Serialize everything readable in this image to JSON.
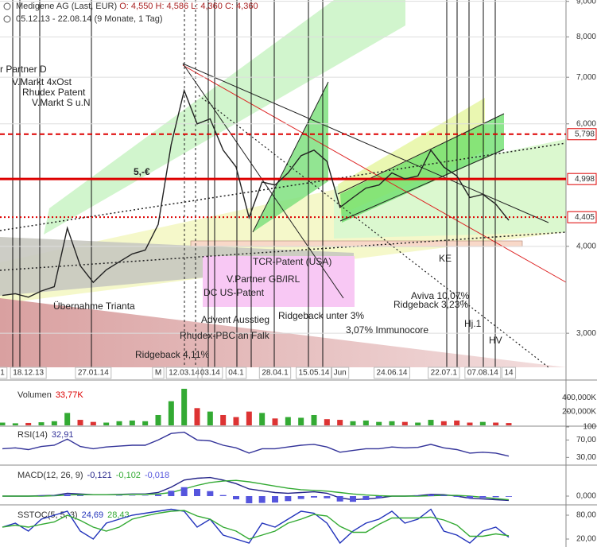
{
  "header": {
    "title": "Medigene AG (Last, EUR)",
    "ohlc": [
      "O: 4,550",
      "H: 4,586",
      "L: 4,360",
      "C: 4,360"
    ],
    "range": "05.12.13 - 22.08.14 (9 Monate, 1 Tag)"
  },
  "chart_data": [
    {
      "type": "line",
      "categories": [
        "1",
        null,
        "18.12.13",
        null,
        null,
        null,
        null,
        "27.01.14",
        null,
        null,
        null,
        null,
        "M",
        null,
        "12.03.14",
        null,
        "03.14",
        null,
        "04.1",
        null,
        null,
        "28.04.1",
        null,
        null,
        "15.05.14",
        null,
        "Jun",
        null,
        null,
        null,
        "24.06.14",
        null,
        null,
        null,
        "22.07.1",
        null,
        null,
        "07.08.14",
        null,
        "14"
      ],
      "series": [
        {
          "color": "#222222",
          "values": [
            3.4,
            3.42,
            3.38,
            3.45,
            3.5,
            4.25,
            3.75,
            3.55,
            3.7,
            3.8,
            3.9,
            3.95,
            4.3,
            5.6,
            6.7,
            6.0,
            6.1,
            5.5,
            5.2,
            4.4,
            4.95,
            4.9,
            5.1,
            5.4,
            5.5,
            5.3,
            4.55,
            4.7,
            4.85,
            4.9,
            5.1,
            5.0,
            5.05,
            5.5,
            5.2,
            5.05,
            4.7,
            4.75,
            4.6,
            4.36
          ]
        }
      ],
      "ylim": [
        2.68,
        9.04
      ],
      "log_scale": true,
      "grid": true,
      "yticks": [
        {
          "value": 9,
          "label": "9,000"
        },
        {
          "value": 8,
          "label": "8,000"
        },
        {
          "value": 7,
          "label": "7,000"
        },
        {
          "value": 6,
          "label": "6,000"
        },
        {
          "value": 4,
          "label": "4,000"
        },
        {
          "value": 3,
          "label": "3,000"
        }
      ],
      "levels": [
        {
          "value": 5.798,
          "label": "5,798",
          "color": "#dd0000",
          "style": "dashed"
        },
        {
          "value": 4.998,
          "label": "4,998",
          "color": "#dd0000",
          "style": "solid"
        },
        {
          "value": 4.405,
          "label": "4,405",
          "color": "#dd0000",
          "style": "dotted"
        }
      ],
      "annotations": [
        "r Partner D",
        "V.Markt 4xOst",
        "Rhudex Patent",
        "V.Markt S u.N",
        "5,-€",
        "TCR-Patent (USA)",
        "V.Partner GB/IRL",
        "DC US-Patent",
        "Übernahme Trianta",
        "Advent Ausstieg",
        "Ridgeback unter 3%",
        "Rhudex-PBC an Falk",
        "3,07% Immunocore",
        "Ridgeback 4,11%",
        "Aviva 10,07%",
        "Ridgeback 3,23%",
        "KE",
        "Hj.1",
        "HV"
      ]
    },
    {
      "type": "bar",
      "title": "Volumen",
      "series": [
        {
          "values": [
            40,
            30,
            35,
            45,
            60,
            180,
            80,
            50,
            40,
            60,
            70,
            60,
            150,
            350,
            530,
            250,
            200,
            150,
            120,
            200,
            180,
            100,
            120,
            110,
            150,
            90,
            80,
            60,
            70,
            50,
            60,
            50,
            40,
            80,
            60,
            70,
            40,
            50,
            40,
            33.77
          ],
          "value_label": "33,77K",
          "color": "#dd0000",
          "up_color": "#33aa33",
          "down_color": "#dd3333"
        }
      ],
      "ylim": [
        0,
        553
      ],
      "yticks": [
        {
          "value": 400,
          "label": "400,000K"
        },
        {
          "value": 200,
          "label": "200,000K"
        }
      ]
    },
    {
      "type": "line",
      "title": "RSI(14)",
      "series": [
        {
          "color": "#333399",
          "values": [
            50,
            52,
            48,
            55,
            58,
            72,
            55,
            50,
            54,
            56,
            58,
            58,
            70,
            85,
            88,
            70,
            68,
            58,
            52,
            40,
            50,
            50,
            54,
            58,
            60,
            54,
            42,
            46,
            50,
            50,
            54,
            52,
            53,
            60,
            52,
            48,
            40,
            42,
            40,
            32.91
          ],
          "value_label": "32,91"
        }
      ],
      "ylim": [
        16,
        100
      ],
      "yticks": [
        100,
        {
          "value": 70,
          "label": "70,00"
        },
        {
          "value": 30,
          "label": "30,00"
        }
      ]
    },
    {
      "type": "line",
      "title": "MACD(12, 26, 9)",
      "series": [
        {
          "color": "#222288",
          "values": [
            0,
            0,
            0,
            0.01,
            0.02,
            0.08,
            0.06,
            0.04,
            0.04,
            0.05,
            0.06,
            0.06,
            0.1,
            0.25,
            0.45,
            0.5,
            0.52,
            0.45,
            0.35,
            0.2,
            0.15,
            0.1,
            0.08,
            0.1,
            0.12,
            0.08,
            -0.05,
            -0.1,
            -0.08,
            -0.05,
            0,
            0,
            0.01,
            0.05,
            0.04,
            0,
            -0.06,
            -0.08,
            -0.1,
            -0.121
          ],
          "value_label": "-0,121"
        },
        {
          "color": "#33aa33",
          "values": [
            0,
            0,
            0,
            0,
            0.01,
            0.03,
            0.04,
            0.04,
            0.04,
            0.04,
            0.05,
            0.05,
            0.06,
            0.1,
            0.2,
            0.3,
            0.38,
            0.42,
            0.44,
            0.4,
            0.34,
            0.28,
            0.22,
            0.18,
            0.16,
            0.14,
            0.1,
            0.06,
            0.03,
            0.01,
            0,
            0,
            0,
            0.01,
            0.02,
            0.02,
            0,
            -0.03,
            -0.07,
            -0.102
          ],
          "value_label": "-0,102"
        },
        {
          "color": "#5555dd",
          "kind": "bar",
          "values": [
            0,
            0,
            0,
            0.01,
            0.01,
            0.05,
            0.02,
            0,
            0,
            0.01,
            0.01,
            0.01,
            0.04,
            0.15,
            0.25,
            0.2,
            0.14,
            0.03,
            -0.09,
            -0.2,
            -0.19,
            -0.18,
            -0.14,
            -0.08,
            -0.04,
            -0.06,
            -0.15,
            -0.16,
            -0.11,
            -0.06,
            0,
            0,
            0.01,
            0.04,
            0.02,
            -0.02,
            -0.06,
            -0.05,
            -0.03,
            -0.018
          ],
          "value_label": "-0,018"
        }
      ],
      "ylim": [
        -0.2,
        0.8
      ],
      "yticks": [
        {
          "value": 0,
          "label": "0,000"
        }
      ]
    },
    {
      "type": "line",
      "title": "SSTOC(5, 5, 3)",
      "series": [
        {
          "color": "#2233bb",
          "values": [
            50,
            60,
            40,
            70,
            80,
            90,
            40,
            20,
            60,
            70,
            80,
            85,
            90,
            95,
            90,
            50,
            70,
            30,
            20,
            10,
            60,
            50,
            70,
            90,
            85,
            60,
            10,
            40,
            60,
            70,
            90,
            60,
            70,
            95,
            40,
            30,
            10,
            40,
            50,
            24.69
          ],
          "value_label": "24,69"
        },
        {
          "color": "#33aa33",
          "values": [
            50,
            55,
            50,
            57,
            63,
            80,
            67,
            50,
            40,
            50,
            70,
            78,
            85,
            90,
            92,
            78,
            70,
            50,
            40,
            20,
            30,
            40,
            60,
            70,
            82,
            78,
            52,
            37,
            37,
            57,
            73,
            73,
            73,
            75,
            68,
            55,
            27,
            27,
            33,
            28.43
          ],
          "value_label": "28,43"
        }
      ],
      "ylim": [
        0,
        100
      ],
      "yticks": [
        {
          "value": 80,
          "label": "80,00"
        },
        {
          "value": 20,
          "label": "20,00"
        }
      ]
    }
  ]
}
